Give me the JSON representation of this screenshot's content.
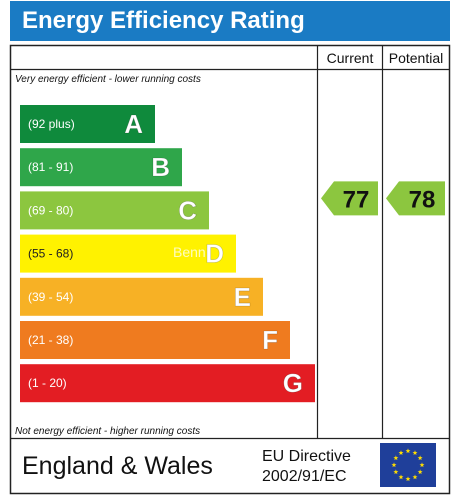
{
  "header": {
    "title": "Energy Efficiency Rating"
  },
  "columns": {
    "current": "Current",
    "potential": "Potential"
  },
  "notes": {
    "top": "Very energy efficient - lower running costs",
    "bottom": "Not energy efficient - higher running costs"
  },
  "watermark": "Benn",
  "footer": {
    "region": "England & Wales",
    "directive_line1": "EU Directive",
    "directive_line2": "2002/91/EC",
    "flag_icon": "eu-flag-icon"
  },
  "chart_data": {
    "type": "bar",
    "title": "Energy Efficiency Rating",
    "bands": [
      {
        "letter": "A",
        "range": "(92 plus)",
        "color": "#0f8a3c"
      },
      {
        "letter": "B",
        "range": "(81 - 91)",
        "color": "#2fa64a"
      },
      {
        "letter": "C",
        "range": "(69 - 80)",
        "color": "#8cc63f"
      },
      {
        "letter": "D",
        "range": "(55 - 68)",
        "color": "#fff200"
      },
      {
        "letter": "E",
        "range": "(39 - 54)",
        "color": "#f7b125"
      },
      {
        "letter": "F",
        "range": "(21 - 38)",
        "color": "#ef7b1f"
      },
      {
        "letter": "G",
        "range": "(1 - 20)",
        "color": "#e31d23"
      }
    ],
    "current": {
      "value": 77,
      "band": "C",
      "color": "#8cc63f"
    },
    "potential": {
      "value": 78,
      "band": "C",
      "color": "#8cc63f"
    }
  }
}
